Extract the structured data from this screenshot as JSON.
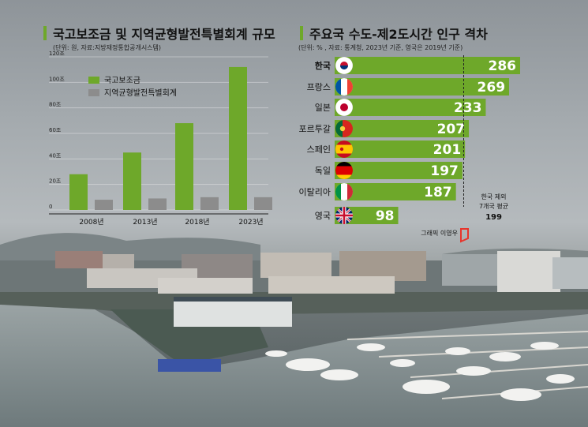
{
  "chart_data": [
    {
      "type": "bar",
      "title": "국고보조금 및 지역균형발전특별회계 규모",
      "subtitle": "(단위: 원, 자료:지방재정통합공개시스템)",
      "categories": [
        "2008년",
        "2013년",
        "2018년",
        "2023년"
      ],
      "y_ticks": [
        "120조",
        "100조",
        "80조",
        "60조",
        "40조",
        "20조",
        "0"
      ],
      "ylim": [
        0,
        120
      ],
      "series": [
        {
          "name": "국고보조금",
          "color": "#6ea82a",
          "values": [
            28,
            45,
            68,
            112
          ]
        },
        {
          "name": "지역균형발전특별회계",
          "color": "#8c8c8c",
          "values": [
            8,
            9,
            10,
            10
          ]
        }
      ],
      "legend": "top-left"
    },
    {
      "type": "bar",
      "orientation": "horizontal",
      "title": "주요국 수도-제2도시간 인구 격차",
      "subtitle": "(단위: % , 자료: 통계청, 2023년 기준, 영국은 2019년 기준)",
      "categories": [
        "한국",
        "프랑스",
        "일본",
        "포르투갈",
        "스페인",
        "독일",
        "이탈리아",
        "영국"
      ],
      "values": [
        286,
        269,
        233,
        207,
        201,
        197,
        187,
        98
      ],
      "labels": [
        "286",
        "269",
        "233",
        "207",
        "201",
        "197",
        "187",
        "98"
      ],
      "flag_icons": [
        "korea-flag-icon",
        "france-flag-icon",
        "japan-flag-icon",
        "portugal-flag-icon",
        "spain-flag-icon",
        "germany-flag-icon",
        "italy-flag-icon",
        "uk-flag-icon"
      ],
      "bar_color": "#6ea82a",
      "xlim": [
        0,
        290
      ],
      "annotation": {
        "lines": [
          "한국 제외",
          "7개국 평균"
        ],
        "value_label": "199",
        "value": 199
      }
    }
  ],
  "credit": "그래픽 이영우",
  "colors": {
    "accent": "#6ea82a",
    "secondary": "#8c8c8c",
    "logo": "#e8342b"
  }
}
